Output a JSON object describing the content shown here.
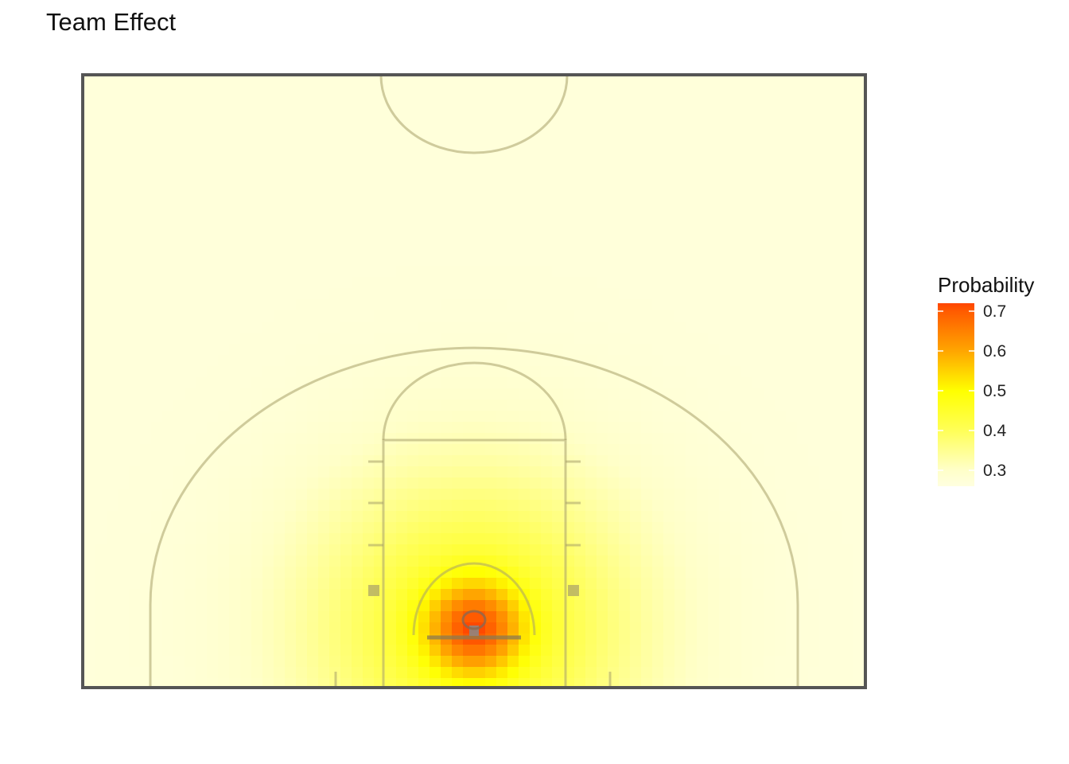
{
  "title": "Team Effect",
  "chart_data": {
    "type": "heatmap",
    "title": "Team Effect",
    "xlabel": "",
    "ylabel": "",
    "description_of_surface": "Shot probability over a half court; peak at the rim, decaying with distance",
    "peak": {
      "location": "rim",
      "value": 0.72
    },
    "baseline_value": 0.27,
    "color_scale": {
      "stops": [
        {
          "value": 0.26,
          "color": "#ffffe0"
        },
        {
          "value": 0.3,
          "color": "#ffffc8"
        },
        {
          "value": 0.4,
          "color": "#ffff5a"
        },
        {
          "value": 0.5,
          "color": "#ffff00"
        },
        {
          "value": 0.6,
          "color": "#ffa500"
        },
        {
          "value": 0.7,
          "color": "#ff5a00"
        },
        {
          "value": 0.72,
          "color": "#ff4500"
        }
      ],
      "ticks": [
        0.3,
        0.4,
        0.5,
        0.6,
        0.7
      ],
      "range": [
        0.26,
        0.72
      ]
    },
    "legend": {
      "title": "Probability",
      "position": "right"
    },
    "grid": false
  },
  "legend_ticks": [
    "0.7",
    "0.6",
    "0.5",
    "0.4",
    "0.3"
  ]
}
